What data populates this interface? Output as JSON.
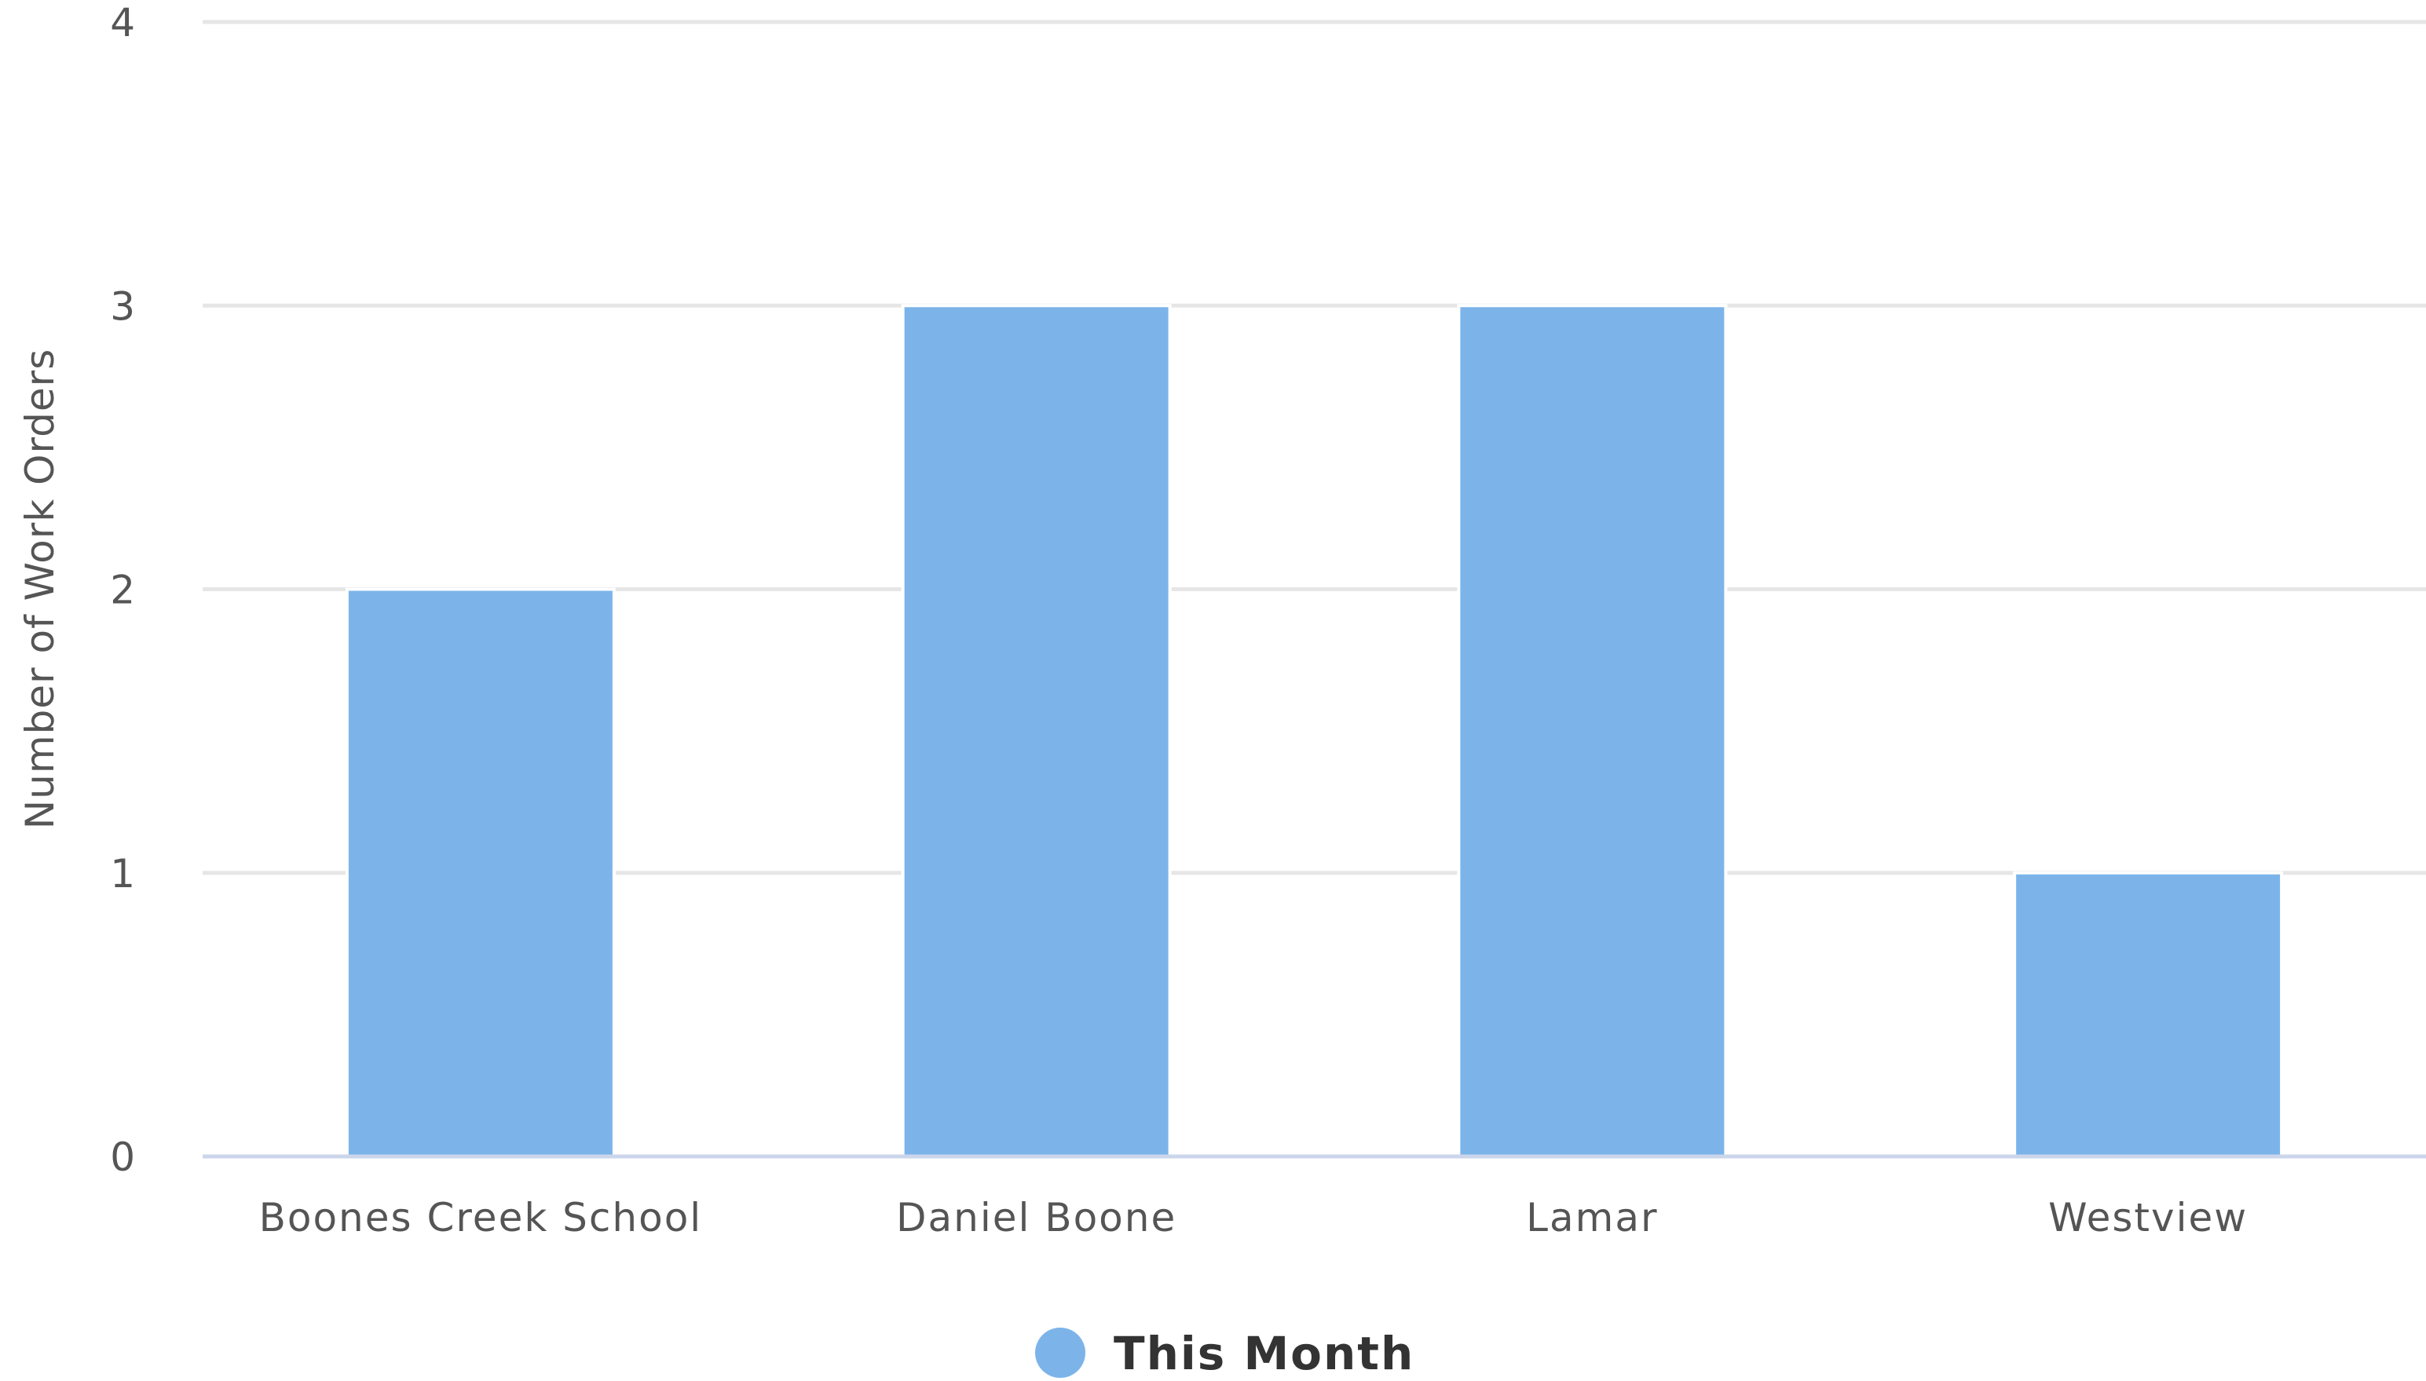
{
  "chart_data": {
    "type": "bar",
    "title": "",
    "xlabel": "",
    "ylabel": "Number of Work Orders",
    "categories": [
      "Boones Creek School",
      "Daniel Boone",
      "Lamar",
      "Westview"
    ],
    "series": [
      {
        "name": "This Month",
        "values": [
          2,
          3,
          3,
          1
        ],
        "color": "#7cb4ea"
      }
    ],
    "ylim": [
      0,
      4
    ],
    "yticks": [
      "0",
      "1",
      "2",
      "3",
      "4"
    ],
    "grid": true,
    "legend": "bottom-center",
    "colors": {
      "grid": "#e6e6e6",
      "axis": "#ccd6eb",
      "text": "#555555",
      "legend_text": "#333333"
    }
  }
}
